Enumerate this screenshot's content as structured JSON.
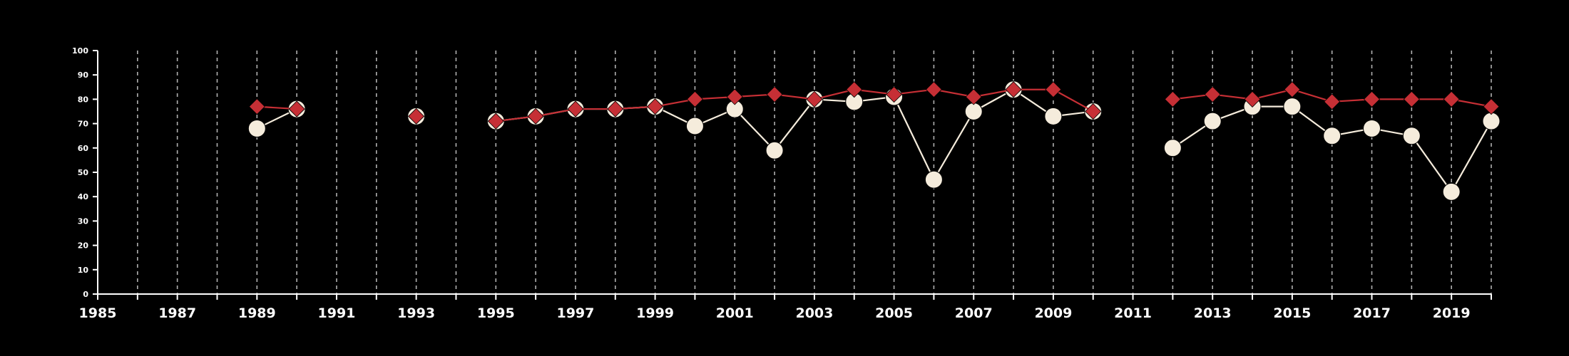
{
  "colors": {
    "background": "#000000",
    "axis": "#ffffff",
    "grid": "#b0b0b0",
    "series_a": "#f5ecdc",
    "series_b": "#c62f35"
  },
  "chart_data": {
    "type": "line",
    "title": "",
    "xlabel": "",
    "ylabel": "",
    "xlim": [
      1985,
      2020
    ],
    "ylim": [
      0,
      100
    ],
    "grid": "vertical dashed",
    "legend": "none",
    "x_ticks": [
      1985,
      1986,
      1987,
      1988,
      1989,
      1990,
      1991,
      1992,
      1993,
      1994,
      1995,
      1996,
      1997,
      1998,
      1999,
      2000,
      2001,
      2002,
      2003,
      2004,
      2005,
      2006,
      2007,
      2008,
      2009,
      2010,
      2011,
      2012,
      2013,
      2014,
      2015,
      2016,
      2017,
      2018,
      2019,
      2020
    ],
    "x_tick_labels": [
      {
        "x": 1985,
        "label": "1985"
      },
      {
        "x": 1987,
        "label": "1987"
      },
      {
        "x": 1989,
        "label": "1989"
      },
      {
        "x": 1991,
        "label": "1991"
      },
      {
        "x": 1993,
        "label": "1993"
      },
      {
        "x": 1995,
        "label": "1995"
      },
      {
        "x": 1997,
        "label": "1997"
      },
      {
        "x": 1999,
        "label": "1999"
      },
      {
        "x": 2001,
        "label": "2001"
      },
      {
        "x": 2003,
        "label": "2003"
      },
      {
        "x": 2005,
        "label": "2005"
      },
      {
        "x": 2007,
        "label": "2007"
      },
      {
        "x": 2009,
        "label": "2009"
      },
      {
        "x": 2011,
        "label": "2011"
      },
      {
        "x": 2013,
        "label": "2013"
      },
      {
        "x": 2015,
        "label": "2015"
      },
      {
        "x": 2017,
        "label": "2017"
      },
      {
        "x": 2019,
        "label": "2019"
      }
    ],
    "y_ticks": [
      {
        "y": 0,
        "label": "0"
      },
      {
        "y": 10,
        "label": "10"
      },
      {
        "y": 20,
        "label": "20"
      },
      {
        "y": 30,
        "label": "30"
      },
      {
        "y": 40,
        "label": "40"
      },
      {
        "y": 50,
        "label": "50"
      },
      {
        "y": 60,
        "label": "60"
      },
      {
        "y": 70,
        "label": "70"
      },
      {
        "y": 80,
        "label": "80"
      },
      {
        "y": 90,
        "label": "90"
      },
      {
        "y": 100,
        "label": "100"
      }
    ],
    "series": [
      {
        "key": "series_a",
        "marker": "circle",
        "color": "#f5ecdc",
        "segments": [
          [
            [
              1989,
              68
            ],
            [
              1990,
              76
            ]
          ],
          [
            [
              1993,
              73
            ]
          ],
          [
            [
              1995,
              71
            ],
            [
              1996,
              73
            ],
            [
              1997,
              76
            ],
            [
              1998,
              76
            ],
            [
              1999,
              77
            ],
            [
              2000,
              69
            ],
            [
              2001,
              76
            ],
            [
              2002,
              59
            ],
            [
              2003,
              80
            ],
            [
              2004,
              79
            ],
            [
              2005,
              81
            ],
            [
              2006,
              47
            ],
            [
              2007,
              75
            ],
            [
              2008,
              84
            ],
            [
              2009,
              73
            ],
            [
              2010,
              75
            ]
          ],
          [
            [
              2012,
              60
            ],
            [
              2013,
              71
            ],
            [
              2014,
              77
            ],
            [
              2015,
              77
            ],
            [
              2016,
              65
            ],
            [
              2017,
              68
            ],
            [
              2018,
              65
            ],
            [
              2019,
              42
            ],
            [
              2020,
              71
            ]
          ]
        ]
      },
      {
        "key": "series_b",
        "marker": "diamond",
        "color": "#c62f35",
        "segments": [
          [
            [
              1989,
              77
            ],
            [
              1990,
              76
            ]
          ],
          [
            [
              1993,
              73
            ]
          ],
          [
            [
              1995,
              71
            ],
            [
              1996,
              73
            ],
            [
              1997,
              76
            ],
            [
              1998,
              76
            ],
            [
              1999,
              77
            ],
            [
              2000,
              80
            ],
            [
              2001,
              81
            ],
            [
              2002,
              82
            ],
            [
              2003,
              80
            ],
            [
              2004,
              84
            ],
            [
              2005,
              82
            ],
            [
              2006,
              84
            ],
            [
              2007,
              81
            ],
            [
              2008,
              84
            ],
            [
              2009,
              84
            ],
            [
              2010,
              75
            ]
          ],
          [
            [
              2012,
              80
            ],
            [
              2013,
              82
            ],
            [
              2014,
              80
            ],
            [
              2015,
              84
            ],
            [
              2016,
              79
            ],
            [
              2017,
              80
            ],
            [
              2018,
              80
            ],
            [
              2019,
              80
            ],
            [
              2020,
              77
            ]
          ]
        ]
      }
    ]
  }
}
